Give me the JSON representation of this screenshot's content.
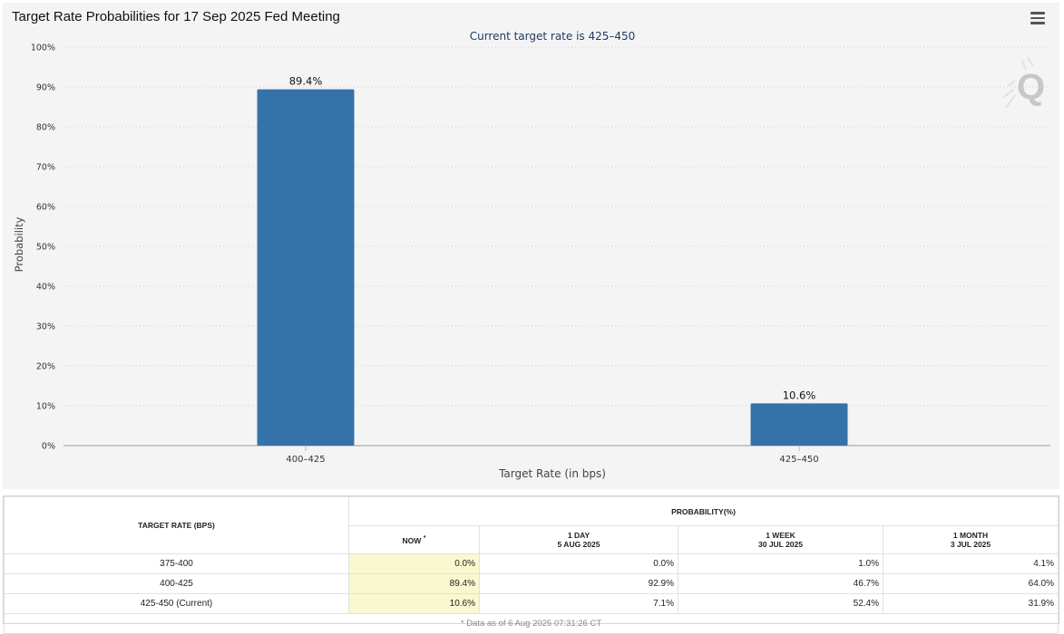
{
  "chart": {
    "title": "Target Rate Probabilities for 17 Sep 2025 Fed Meeting",
    "subtitle": "Current target rate is 425–450"
  },
  "chart_data": {
    "type": "bar",
    "categories": [
      "400–425",
      "425–450"
    ],
    "values": [
      89.4,
      10.6
    ],
    "data_labels": [
      "89.4%",
      "10.6%"
    ],
    "title": "Target Rate Probabilities for 17 Sep 2025 Fed Meeting",
    "subtitle": "Current target rate is 425–450",
    "xlabel": "Target Rate (in bps)",
    "ylabel": "Probability",
    "ylim": [
      0,
      100
    ],
    "yticks": [
      "0%",
      "10%",
      "20%",
      "30%",
      "40%",
      "50%",
      "60%",
      "70%",
      "80%",
      "90%",
      "100%"
    ],
    "grid": true,
    "bar_color": "#3572a9"
  },
  "table": {
    "rate_header": "TARGET RATE (BPS)",
    "prob_header": "PROBABILITY(%)",
    "columns": [
      {
        "label": "NOW",
        "sub": ""
      },
      {
        "label": "1 DAY",
        "sub": "5 AUG 2025"
      },
      {
        "label": "1 WEEK",
        "sub": "30 JUL 2025"
      },
      {
        "label": "1 MONTH",
        "sub": "3 JUL 2025"
      }
    ],
    "now_star": "*",
    "rows": [
      {
        "rate": "375-400",
        "values": [
          "0.0%",
          "0.0%",
          "1.0%",
          "4.1%"
        ]
      },
      {
        "rate": "400-425",
        "values": [
          "89.4%",
          "92.9%",
          "46.7%",
          "64.0%"
        ]
      },
      {
        "rate": "425-450 (Current)",
        "values": [
          "10.6%",
          "7.1%",
          "52.4%",
          "31.9%"
        ]
      }
    ],
    "footnote": "* Data as of 6 Aug 2025 07:31:26 CT"
  },
  "icons": {
    "menu": "hamburger-menu-icon",
    "watermark": "q-logo"
  }
}
